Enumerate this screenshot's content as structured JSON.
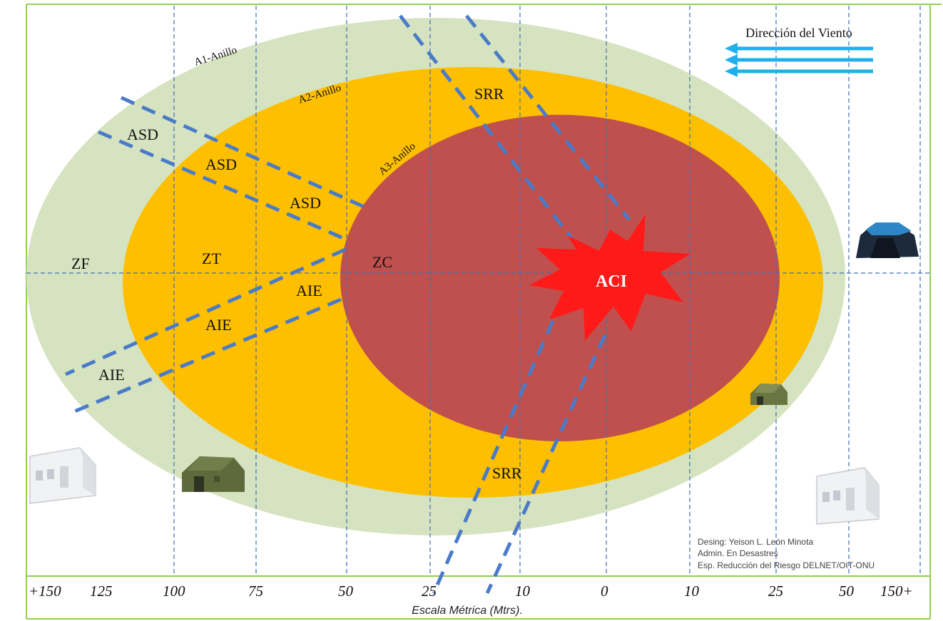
{
  "wind_label": "Dirección del Viento",
  "rings": {
    "a1": "A1-Anillo",
    "a2": "A2-Anillo",
    "a3": "A3-Anillo"
  },
  "zones": {
    "zf": "ZF",
    "zt": "ZT",
    "zc": "ZC",
    "aci": "ACI"
  },
  "corridor_labels": {
    "asd": [
      "ASD",
      "ASD",
      "ASD"
    ],
    "aie": [
      "AIE",
      "AIE",
      "AIE"
    ],
    "srr": [
      "SRR",
      "SRR"
    ]
  },
  "scale": {
    "ticks": [
      "+150",
      "125",
      "100",
      "75",
      "50",
      "25",
      "10",
      "0",
      "10",
      "25",
      "50",
      "150+"
    ],
    "caption": "Escala Métrica (Mtrs)."
  },
  "credits": [
    "Desing: Yeison L. León Minota",
    "Admin. En Desastres",
    "Esp. Reducción del Riesgo DELNET/OIT-ONU"
  ],
  "colors": {
    "outer_ring": "#d6e3c0",
    "middle_ring": "#fdbf00",
    "inner_ring": "#c0504d",
    "burst": "#ff1a1a",
    "wind_arrows": "#1fb0ec",
    "frame": "#92d050"
  }
}
